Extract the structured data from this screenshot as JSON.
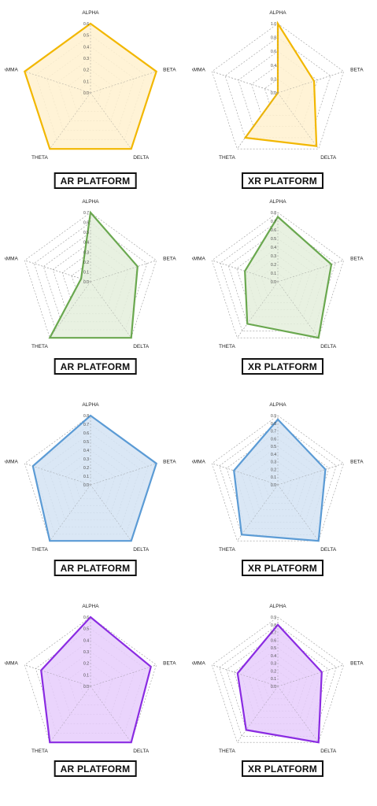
{
  "chart_data": [
    {
      "type": "radar",
      "caption": "AR PLATFORM",
      "axes": [
        "ALPHA",
        "BETA",
        "DELTA",
        "THETA",
        "GAMMA"
      ],
      "rmax": 0.6,
      "ticks": [
        "0.0",
        "0.1",
        "0.2",
        "0.3",
        "0.4",
        "0.5",
        "0.6"
      ],
      "values": [
        0.6,
        0.6,
        0.6,
        0.6,
        0.6
      ],
      "color": "#f2b701",
      "fill": "#fff1cf",
      "dashed_grid": true
    },
    {
      "type": "radar",
      "caption": "XR PLATFORM",
      "axes": [
        "ALPHA",
        "BETA",
        "DELTA",
        "THETA",
        "GAMMA"
      ],
      "rmax": 1.0,
      "ticks": [
        "0.0",
        "0.2",
        "0.4",
        "0.6",
        "0.8",
        "1.0"
      ],
      "values": [
        1.0,
        0.55,
        0.95,
        0.8,
        0.0
      ],
      "color": "#f2b701",
      "fill": "#fff1cf",
      "dashed_grid": false
    },
    {
      "type": "radar",
      "caption": "AR PLATFORM",
      "axes": [
        "ALPHA",
        "BETA",
        "DELTA",
        "THETA",
        "GAMMA"
      ],
      "rmax": 0.7,
      "ticks": [
        "0.0",
        "0.1",
        "0.2",
        "0.3",
        "0.4",
        "0.5",
        "0.6",
        "0.7"
      ],
      "values": [
        0.7,
        0.5,
        0.7,
        0.7,
        0.1
      ],
      "color": "#6aa84f",
      "fill": "#e4efdc",
      "dashed_grid": true
    },
    {
      "type": "radar",
      "caption": "XR PLATFORM",
      "axes": [
        "ALPHA",
        "BETA",
        "DELTA",
        "THETA",
        "GAMMA"
      ],
      "rmax": 0.8,
      "ticks": [
        "0.0",
        "0.1",
        "0.2",
        "0.3",
        "0.4",
        "0.5",
        "0.6",
        "0.7",
        "0.8"
      ],
      "values": [
        0.75,
        0.65,
        0.8,
        0.6,
        0.4
      ],
      "color": "#6aa84f",
      "fill": "#e4efdc",
      "dashed_grid": true
    },
    {
      "type": "radar",
      "caption": "AR PLATFORM",
      "axes": [
        "ALPHA",
        "BETA",
        "DELTA",
        "THETA",
        "GAMMA"
      ],
      "rmax": 0.8,
      "ticks": [
        "0.0",
        "0.1",
        "0.2",
        "0.3",
        "0.4",
        "0.5",
        "0.6",
        "0.7",
        "0.8"
      ],
      "values": [
        0.8,
        0.8,
        0.8,
        0.8,
        0.7
      ],
      "color": "#5b9bd5",
      "fill": "#d4e3f3",
      "dashed_grid": true
    },
    {
      "type": "radar",
      "caption": "XR PLATFORM",
      "axes": [
        "ALPHA",
        "BETA",
        "DELTA",
        "THETA",
        "GAMMA"
      ],
      "rmax": 0.9,
      "ticks": [
        "0.0",
        "0.1",
        "0.2",
        "0.3",
        "0.4",
        "0.5",
        "0.6",
        "0.7",
        "0.8",
        "0.9"
      ],
      "values": [
        0.85,
        0.65,
        0.9,
        0.8,
        0.6
      ],
      "color": "#5b9bd5",
      "fill": "#d4e3f3",
      "dashed_grid": true
    },
    {
      "type": "radar",
      "caption": "AR PLATFORM",
      "axes": [
        "ALPHA",
        "BETA",
        "DELTA",
        "THETA",
        "GAMMA"
      ],
      "rmax": 0.6,
      "ticks": [
        "0.0",
        "0.1",
        "0.2",
        "0.3",
        "0.4",
        "0.5",
        "0.6"
      ],
      "values": [
        0.6,
        0.55,
        0.6,
        0.6,
        0.45
      ],
      "color": "#8a2be2",
      "fill": "#e6ccfb",
      "dashed_grid": false
    },
    {
      "type": "radar",
      "caption": "XR PLATFORM",
      "axes": [
        "ALPHA",
        "BETA",
        "DELTA",
        "THETA",
        "GAMMA"
      ],
      "rmax": 0.9,
      "ticks": [
        "0.0",
        "0.1",
        "0.2",
        "0.3",
        "0.4",
        "0.5",
        "0.6",
        "0.7",
        "0.8",
        "0.9"
      ],
      "values": [
        0.8,
        0.6,
        0.9,
        0.7,
        0.55
      ],
      "color": "#8a2be2",
      "fill": "#e6ccfb",
      "dashed_grid": true
    }
  ]
}
